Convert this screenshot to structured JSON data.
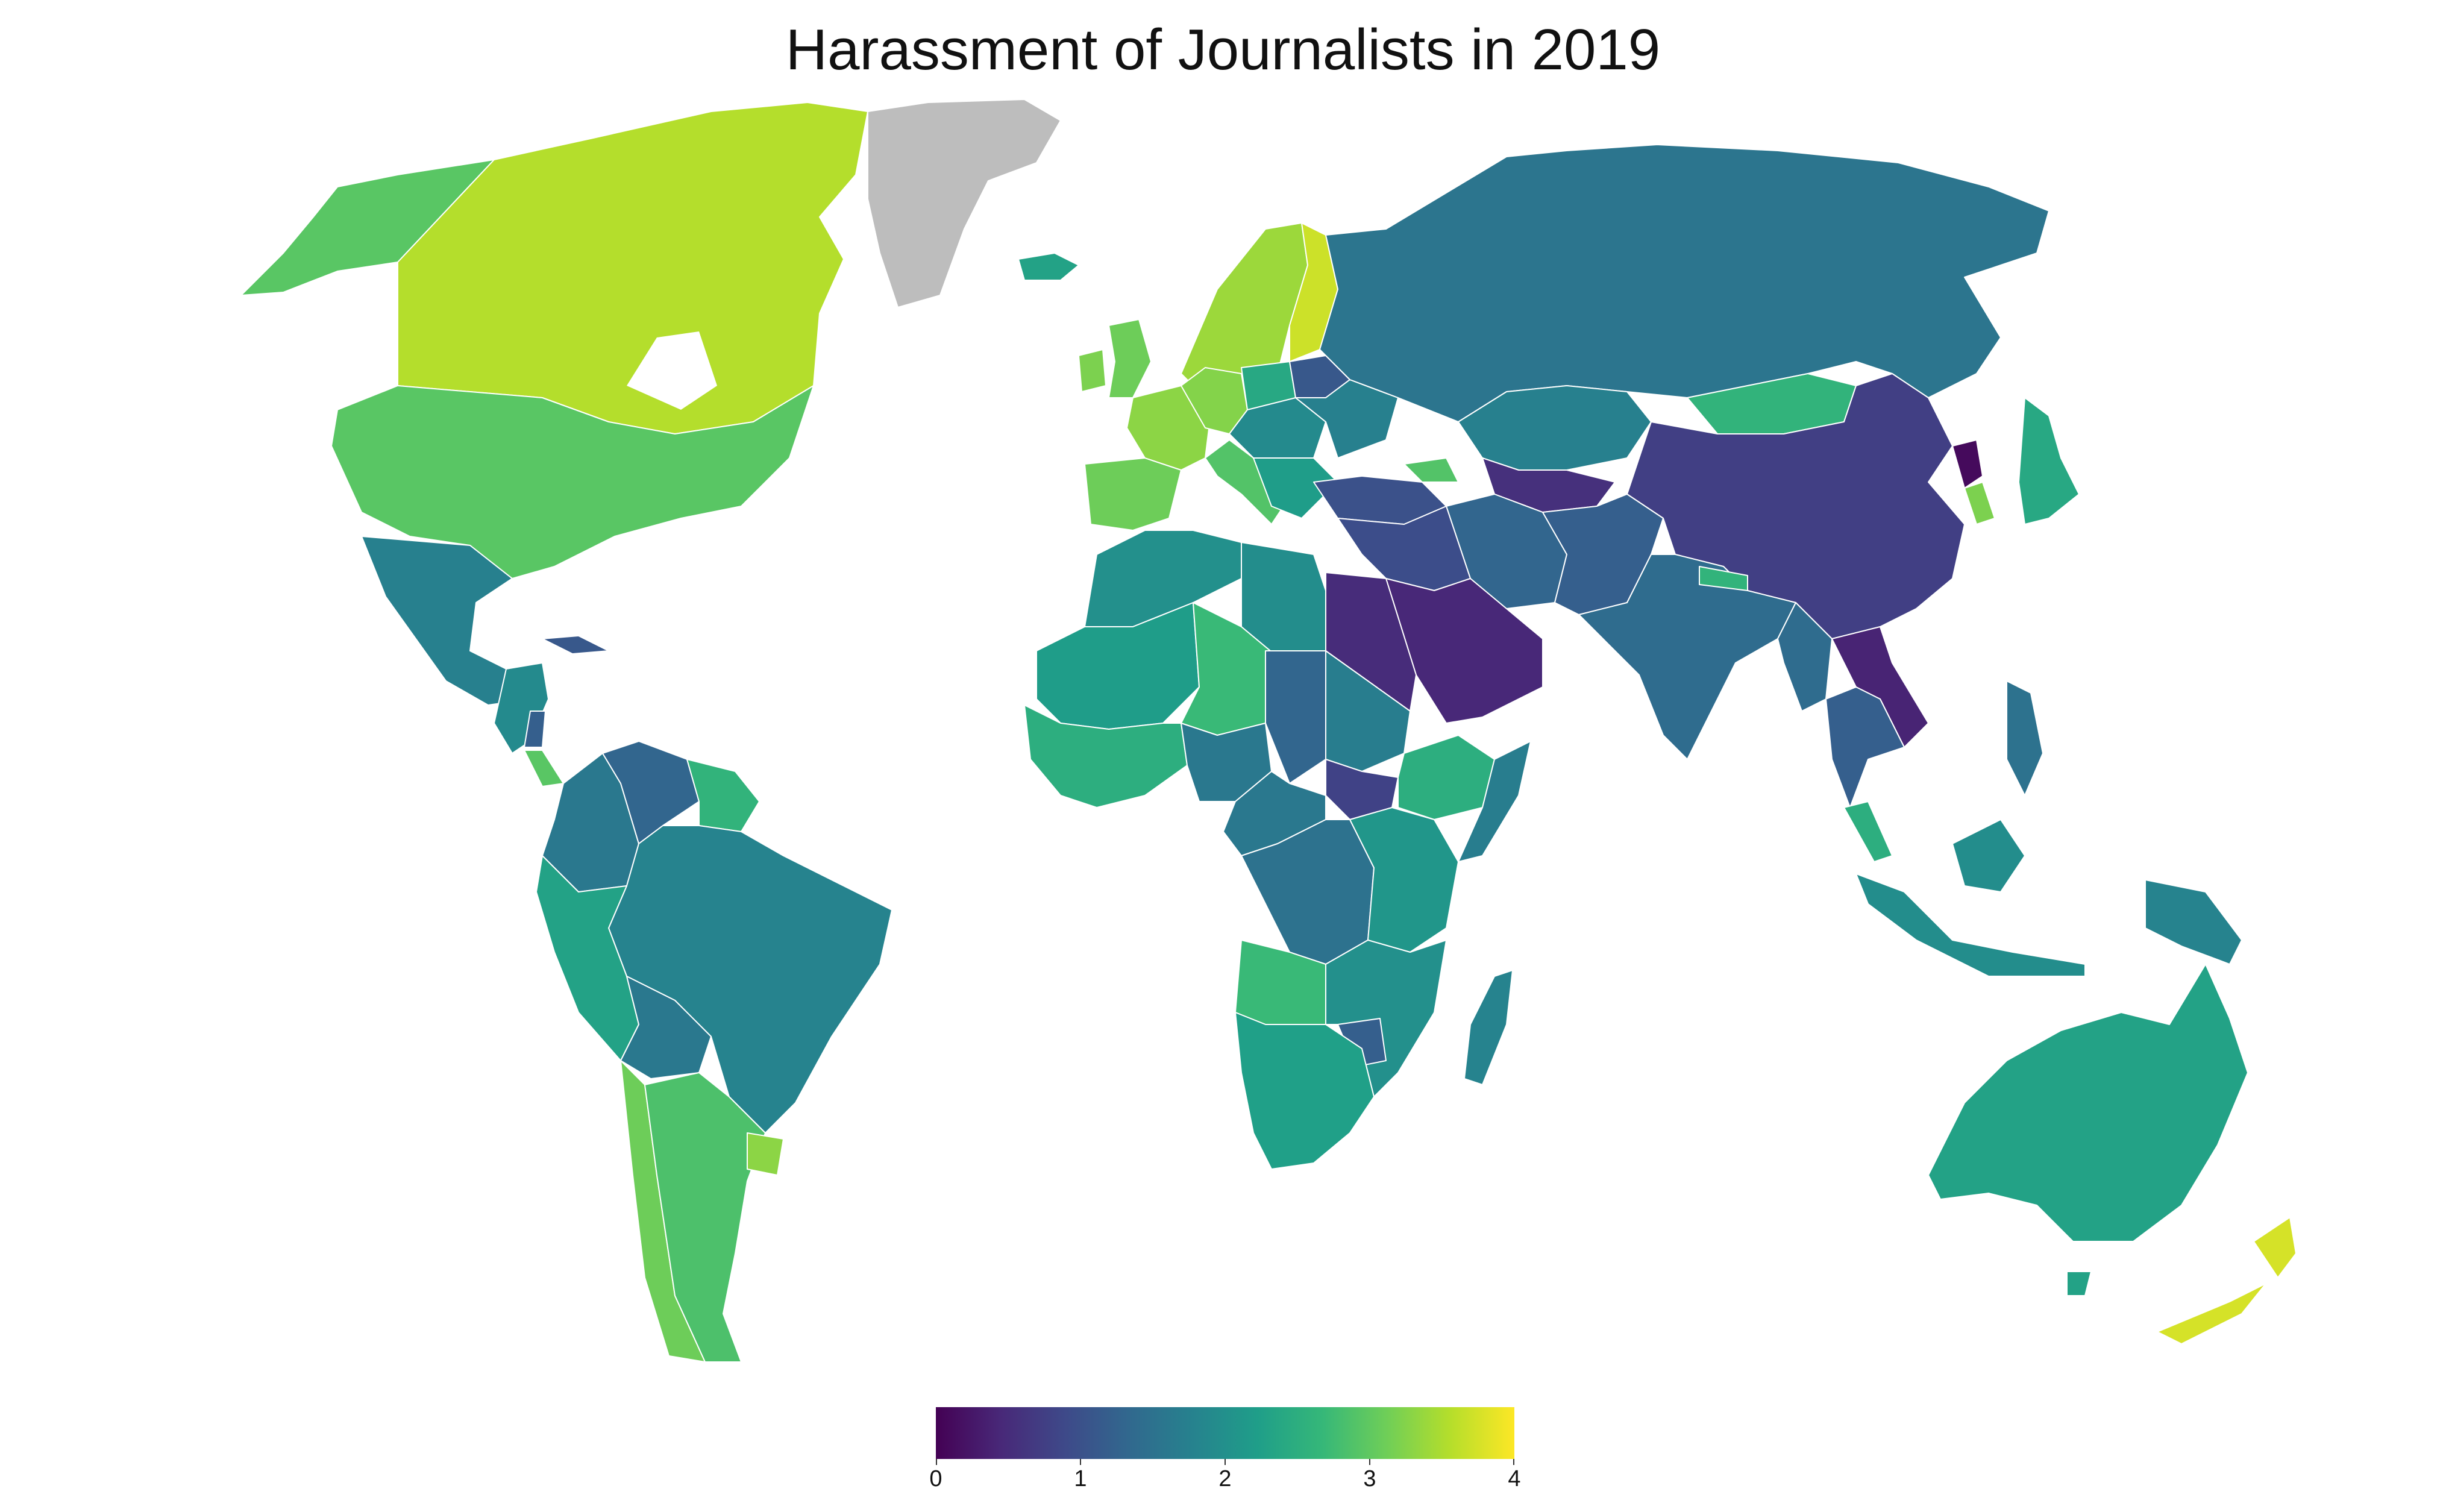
{
  "title": "Harassment of Journalists in 2019",
  "colors": {
    "no_data": "#bdbdbd",
    "ocean": "#ffffff",
    "viridis": [
      "#440154",
      "#482878",
      "#3e4989",
      "#31688e",
      "#26828e",
      "#1f9e89",
      "#35b779",
      "#6ece58",
      "#b5de2b",
      "#fde725"
    ]
  },
  "legend": {
    "min": 0,
    "max": 4,
    "ticks": [
      "0",
      "1",
      "2",
      "3",
      "4"
    ]
  },
  "regions": [
    {
      "name": "Canada",
      "value": 3.55
    },
    {
      "name": "United States",
      "value": 2.95
    },
    {
      "name": "Alaska (USA)",
      "value": 2.95
    },
    {
      "name": "Greenland",
      "value": null
    },
    {
      "name": "Mexico",
      "value": 1.75
    },
    {
      "name": "Cuba",
      "value": 1.1
    },
    {
      "name": "Central America",
      "value": 1.9
    },
    {
      "name": "Nicaragua",
      "value": 1.2
    },
    {
      "name": "Costa Rica",
      "value": 2.95
    },
    {
      "name": "Venezuela",
      "value": 1.3
    },
    {
      "name": "Colombia",
      "value": 1.6
    },
    {
      "name": "Guyana/Suriname",
      "value": 2.6
    },
    {
      "name": "Brazil",
      "value": 1.8
    },
    {
      "name": "Peru",
      "value": 2.3
    },
    {
      "name": "Bolivia",
      "value": 1.6
    },
    {
      "name": "Chile",
      "value": 3.1
    },
    {
      "name": "Argentina",
      "value": 2.85
    },
    {
      "name": "Uruguay",
      "value": 3.3
    },
    {
      "name": "Iceland",
      "value": 2.3
    },
    {
      "name": "Norway/Sweden",
      "value": 3.4
    },
    {
      "name": "Finland",
      "value": 3.7
    },
    {
      "name": "United Kingdom",
      "value": 3.1
    },
    {
      "name": "Ireland",
      "value": 3.2
    },
    {
      "name": "Spain/Portugal",
      "value": 3.1
    },
    {
      "name": "France",
      "value": 3.3
    },
    {
      "name": "Germany",
      "value": 3.25
    },
    {
      "name": "Italy",
      "value": 2.9
    },
    {
      "name": "Poland",
      "value": 2.4
    },
    {
      "name": "Eastern Europe",
      "value": 1.9
    },
    {
      "name": "Balkans",
      "value": 2.2
    },
    {
      "name": "Ukraine",
      "value": 1.75
    },
    {
      "name": "Belarus",
      "value": 1.1
    },
    {
      "name": "Turkey",
      "value": 1.0
    },
    {
      "name": "Georgia",
      "value": 2.9
    },
    {
      "name": "Russia",
      "value": 1.55
    },
    {
      "name": "Kazakhstan",
      "value": 1.75
    },
    {
      "name": "Turkmenistan/Uzbekistan",
      "value": 0.55
    },
    {
      "name": "Iran",
      "value": 1.3
    },
    {
      "name": "Afghanistan/Pakistan",
      "value": 1.2
    },
    {
      "name": "Iraq/Syria",
      "value": 0.95
    },
    {
      "name": "Saudi Arabia",
      "value": 0.45
    },
    {
      "name": "Egypt",
      "value": 0.5
    },
    {
      "name": "Mongolia",
      "value": 2.6
    },
    {
      "name": "China",
      "value": 0.75
    },
    {
      "name": "North Korea",
      "value": 0.1
    },
    {
      "name": "South Korea",
      "value": 3.2
    },
    {
      "name": "Japan",
      "value": 2.4
    },
    {
      "name": "India",
      "value": 1.4
    },
    {
      "name": "Nepal",
      "value": 2.6
    },
    {
      "name": "Myanmar",
      "value": 1.4
    },
    {
      "name": "Laos/Vietnam",
      "value": 0.4
    },
    {
      "name": "Thailand/Cambodia",
      "value": 1.2
    },
    {
      "name": "Malaysia",
      "value": 2.5
    },
    {
      "name": "Indonesia",
      "value": 1.95
    },
    {
      "name": "Philippines",
      "value": 1.5
    },
    {
      "name": "Papua New Guinea",
      "value": 1.8
    },
    {
      "name": "Australia",
      "value": 2.3
    },
    {
      "name": "New Zealand",
      "value": 3.75
    },
    {
      "name": "North Africa",
      "value": 2.0
    },
    {
      "name": "Libya",
      "value": 1.95
    },
    {
      "name": "Mauritania/Mali",
      "value": 2.2
    },
    {
      "name": "West Africa",
      "value": 2.5
    },
    {
      "name": "Niger",
      "value": 2.7
    },
    {
      "name": "Nigeria",
      "value": 1.6
    },
    {
      "name": "Chad",
      "value": 1.3
    },
    {
      "name": "Sudan",
      "value": 1.7
    },
    {
      "name": "South Sudan",
      "value": 0.8
    },
    {
      "name": "Ethiopia",
      "value": 2.5
    },
    {
      "name": "Somalia",
      "value": 1.7
    },
    {
      "name": "Central Africa",
      "value": 1.6
    },
    {
      "name": "DR Congo",
      "value": 1.5
    },
    {
      "name": "East Africa",
      "value": 2.1
    },
    {
      "name": "Angola",
      "value": 2.7
    },
    {
      "name": "Zambia/Mozambique",
      "value": 2.0
    },
    {
      "name": "Zimbabwe",
      "value": 1.2
    },
    {
      "name": "Southern Africa",
      "value": 2.25
    },
    {
      "name": "Madagascar",
      "value": 1.8
    }
  ]
}
